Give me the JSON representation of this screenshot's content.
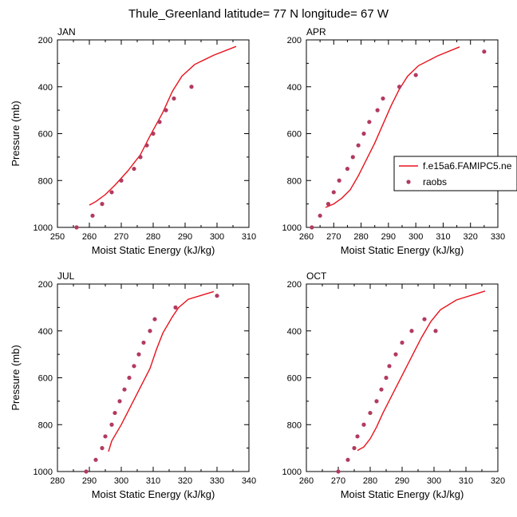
{
  "title": "Thule_Greenland  latitude= 77 N longitude= 67 W",
  "colors": {
    "model": "#e8121c",
    "obs": "#b23a5e",
    "axis": "#000000"
  },
  "legend": {
    "model_label": "f.e15a6.FAMIPC5.ne",
    "obs_label": "raobs",
    "placement": "right-middle"
  },
  "chart_data": [
    {
      "type": "line",
      "panel_label": "JAN",
      "xlabel": "Moist Static Energy (kJ/kg)",
      "ylabel": "Pressure (mb)",
      "xlim": [
        250,
        310
      ],
      "ylim": [
        1000,
        200
      ],
      "xticks": [
        250,
        260,
        270,
        280,
        290,
        300,
        310
      ],
      "yticks": [
        200,
        400,
        600,
        800,
        1000
      ],
      "series": [
        {
          "name": "f.e15a6.FAMIPC5.ne",
          "kind": "line",
          "points": [
            [
              260,
              905
            ],
            [
              262,
              890
            ],
            [
              265,
              860
            ],
            [
              268,
              820
            ],
            [
              272,
              760
            ],
            [
              276,
              690
            ],
            [
              279,
              610
            ],
            [
              283,
              510
            ],
            [
              286,
              420
            ],
            [
              289,
              355
            ],
            [
              293,
              305
            ],
            [
              299,
              265
            ],
            [
              306,
              228
            ]
          ]
        },
        {
          "name": "raobs",
          "kind": "scatter",
          "points": [
            [
              256,
              1000
            ],
            [
              261,
              950
            ],
            [
              264,
              900
            ],
            [
              267,
              850
            ],
            [
              270,
              800
            ],
            [
              274,
              750
            ],
            [
              276,
              700
            ],
            [
              278,
              650
            ],
            [
              280,
              600
            ],
            [
              282,
              550
            ],
            [
              284,
              500
            ],
            [
              286.5,
              450
            ],
            [
              292,
              400
            ]
          ]
        }
      ]
    },
    {
      "type": "line",
      "panel_label": "APR",
      "xlabel": "Moist Static Energy (kJ/kg)",
      "ylabel": "Pressure (mb)",
      "xlim": [
        260,
        330
      ],
      "ylim": [
        1000,
        200
      ],
      "xticks": [
        260,
        270,
        280,
        290,
        300,
        310,
        320,
        330
      ],
      "yticks": [
        200,
        400,
        600,
        800,
        1000
      ],
      "series": [
        {
          "name": "f.e15a6.FAMIPC5.ne",
          "kind": "line",
          "points": [
            [
              267,
              915
            ],
            [
              270,
              900
            ],
            [
              273,
              875
            ],
            [
              276,
              840
            ],
            [
              279,
              780
            ],
            [
              282,
              710
            ],
            [
              285,
              640
            ],
            [
              288,
              560
            ],
            [
              291,
              480
            ],
            [
              294,
              410
            ],
            [
              297,
              355
            ],
            [
              301,
              310
            ],
            [
              308,
              268
            ],
            [
              316,
              230
            ]
          ]
        },
        {
          "name": "raobs",
          "kind": "scatter",
          "points": [
            [
              262,
              1000
            ],
            [
              265,
              950
            ],
            [
              268,
              900
            ],
            [
              270,
              850
            ],
            [
              272,
              800
            ],
            [
              275,
              750
            ],
            [
              277,
              700
            ],
            [
              279,
              650
            ],
            [
              281,
              600
            ],
            [
              283,
              550
            ],
            [
              286,
              500
            ],
            [
              288,
              450
            ],
            [
              294,
              400
            ],
            [
              300,
              350
            ],
            [
              325,
              250
            ]
          ]
        }
      ]
    },
    {
      "type": "line",
      "panel_label": "JUL",
      "xlabel": "Moist Static Energy (kJ/kg)",
      "ylabel": "Pressure (mb)",
      "xlim": [
        280,
        340
      ],
      "ylim": [
        1000,
        200
      ],
      "xticks": [
        280,
        290,
        300,
        310,
        320,
        330,
        340
      ],
      "yticks": [
        200,
        400,
        600,
        800,
        1000
      ],
      "series": [
        {
          "name": "f.e15a6.FAMIPC5.ne",
          "kind": "line",
          "points": [
            [
              296,
              915
            ],
            [
              297,
              870
            ],
            [
              300,
              800
            ],
            [
              303,
              720
            ],
            [
              306,
              640
            ],
            [
              309,
              560
            ],
            [
              311,
              480
            ],
            [
              313,
              410
            ],
            [
              316,
              340
            ],
            [
              318,
              300
            ],
            [
              321,
              265
            ],
            [
              329,
              232
            ]
          ]
        },
        {
          "name": "raobs",
          "kind": "scatter",
          "points": [
            [
              289,
              1000
            ],
            [
              292,
              950
            ],
            [
              294,
              900
            ],
            [
              295,
              850
            ],
            [
              297,
              800
            ],
            [
              298,
              750
            ],
            [
              299.5,
              700
            ],
            [
              301,
              650
            ],
            [
              302.5,
              600
            ],
            [
              304,
              550
            ],
            [
              305.5,
              500
            ],
            [
              307,
              450
            ],
            [
              309,
              400
            ],
            [
              310.5,
              350
            ],
            [
              317,
              300
            ],
            [
              330,
              250
            ]
          ]
        }
      ]
    },
    {
      "type": "line",
      "panel_label": "OCT",
      "xlabel": "Moist Static Energy (kJ/kg)",
      "ylabel": "Pressure (mb)",
      "xlim": [
        260,
        320
      ],
      "ylim": [
        1000,
        200
      ],
      "xticks": [
        260,
        270,
        280,
        290,
        300,
        310,
        320
      ],
      "yticks": [
        200,
        400,
        600,
        800,
        1000
      ],
      "series": [
        {
          "name": "f.e15a6.FAMIPC5.ne",
          "kind": "line",
          "points": [
            [
              276,
              910
            ],
            [
              278,
              895
            ],
            [
              280,
              860
            ],
            [
              282,
              810
            ],
            [
              284,
              750
            ],
            [
              287,
              670
            ],
            [
              290,
              590
            ],
            [
              293,
              510
            ],
            [
              296,
              430
            ],
            [
              299,
              360
            ],
            [
              302,
              310
            ],
            [
              307,
              268
            ],
            [
              316,
              230
            ]
          ]
        },
        {
          "name": "raobs",
          "kind": "scatter",
          "points": [
            [
              270,
              1000
            ],
            [
              273,
              950
            ],
            [
              275,
              900
            ],
            [
              276,
              850
            ],
            [
              278,
              800
            ],
            [
              280,
              750
            ],
            [
              282,
              700
            ],
            [
              283.5,
              650
            ],
            [
              285,
              600
            ],
            [
              286,
              550
            ],
            [
              288,
              500
            ],
            [
              290,
              450
            ],
            [
              293,
              400
            ],
            [
              297,
              350
            ],
            [
              300.5,
              400
            ]
          ]
        }
      ]
    }
  ]
}
